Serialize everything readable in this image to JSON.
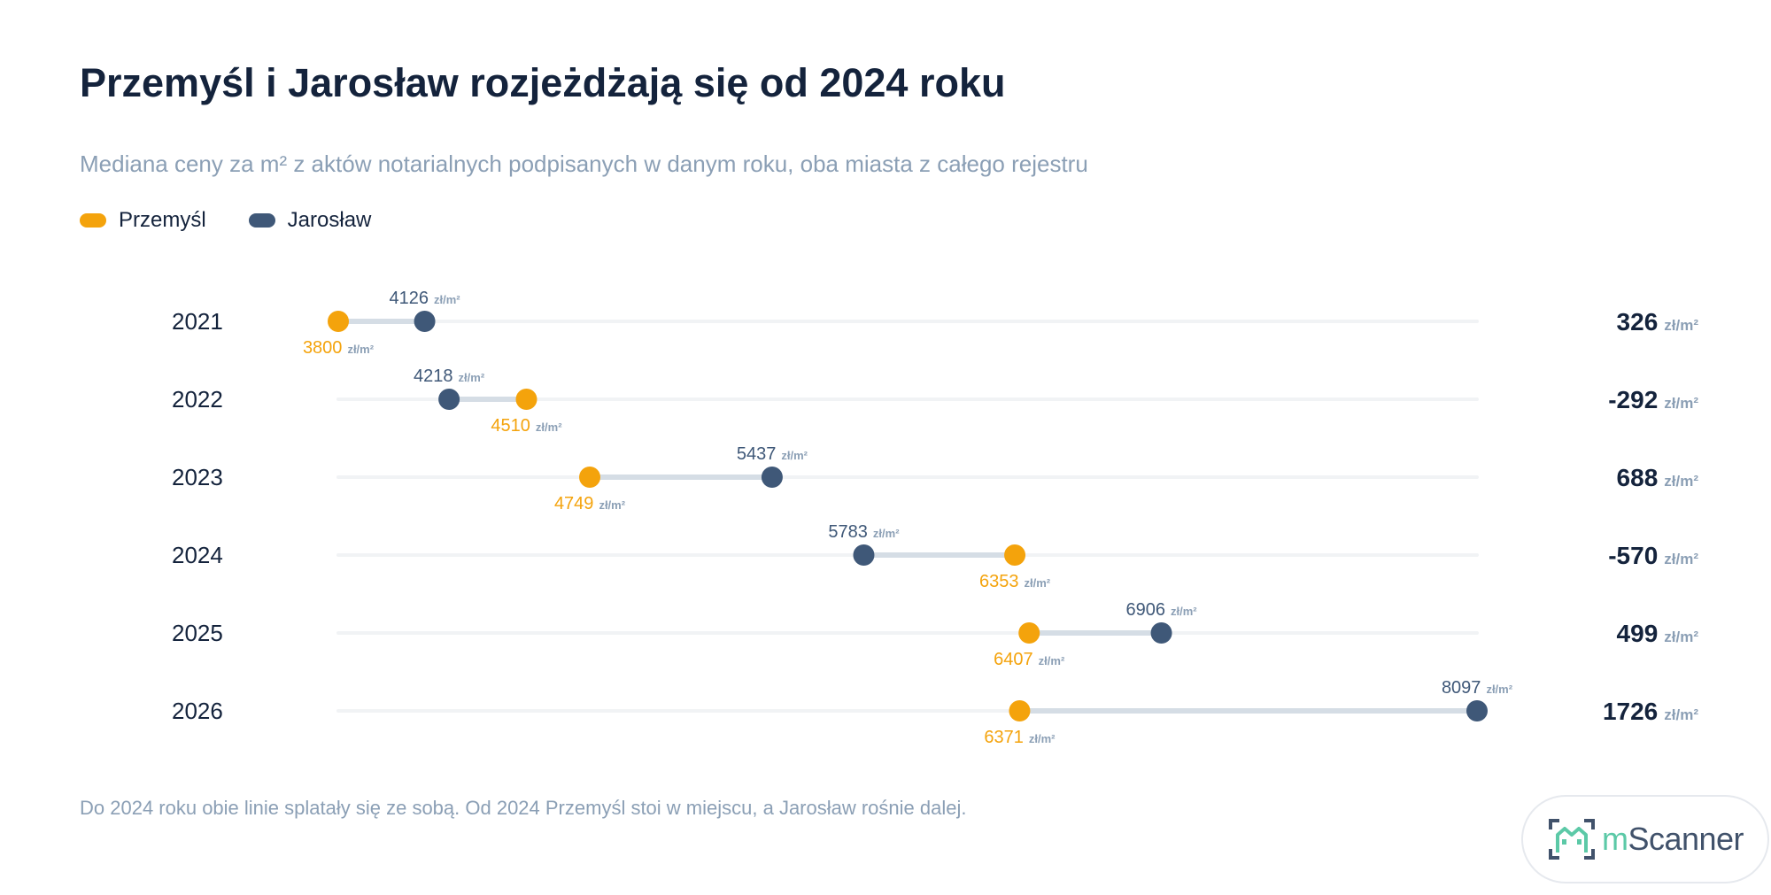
{
  "title": "Przemyśl i Jarosław rozjeżdżają się od 2024 roku",
  "subtitle": "Mediana ceny za m² z aktów notarialnych podpisanych w danym roku, oba miasta z całego rejestru",
  "footnote": "Do 2024 roku obie linie splatały się ze sobą. Od 2024 Przemyśl stoi w miejscu, a Jarosław rośnie dalej.",
  "logo": {
    "prefix": "m",
    "name": "Scanner"
  },
  "colors": {
    "przemysl": "#f4a30c",
    "jaroslaw": "#3f5878",
    "connector": "#d5dde5",
    "track": "#f1f3f5",
    "text": "#14233c",
    "muted": "#8b9fb5"
  },
  "chart_data": {
    "type": "dumbbell",
    "unit": "zł/m²",
    "categories": [
      "2021",
      "2022",
      "2023",
      "2024",
      "2025",
      "2026"
    ],
    "series": [
      {
        "name": "Przemyśl",
        "values": [
          3800,
          4510,
          4749,
          6353,
          6407,
          6371
        ]
      },
      {
        "name": "Jarosław",
        "values": [
          4126,
          4218,
          5437,
          5783,
          6906,
          8097
        ]
      }
    ],
    "differences": [
      326,
      -292,
      688,
      -570,
      499,
      1726
    ],
    "legend": "top-left"
  }
}
